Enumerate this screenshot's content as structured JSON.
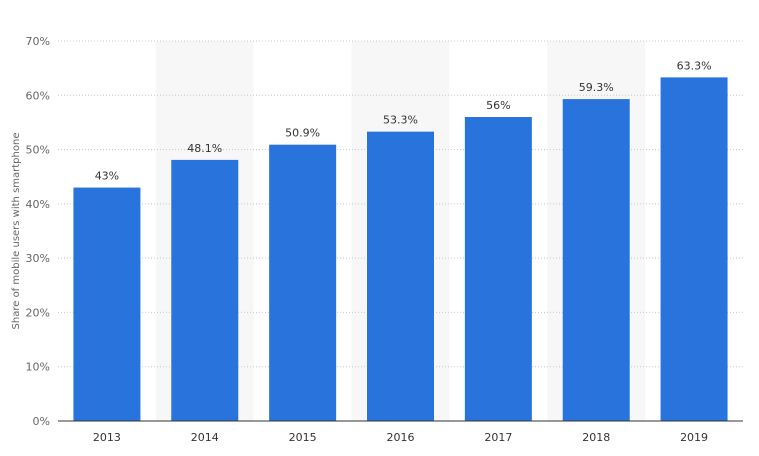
{
  "chart_data": {
    "type": "bar",
    "title": "",
    "xlabel": "",
    "ylabel": "Share of mobile users with smartphone",
    "categories": [
      "2013",
      "2014",
      "2015",
      "2016",
      "2017",
      "2018",
      "2019"
    ],
    "values": [
      43,
      48.1,
      50.9,
      53.3,
      56,
      59.3,
      63.3
    ],
    "data_labels": [
      "43%",
      "48.1%",
      "50.9%",
      "53.3%",
      "56%",
      "59.3%",
      "63.3%"
    ],
    "ylim": [
      0,
      70
    ],
    "yticks": [
      0,
      10,
      20,
      30,
      40,
      50,
      60,
      70
    ],
    "ytick_labels": [
      "0%",
      "10%",
      "20%",
      "30%",
      "40%",
      "50%",
      "60%",
      "70%"
    ],
    "grid": true,
    "legend": "none",
    "colors": {
      "bar": "#2874dc",
      "band": "#f7f7f7",
      "grid": "#c8c8c8",
      "axis": "#333333"
    }
  }
}
